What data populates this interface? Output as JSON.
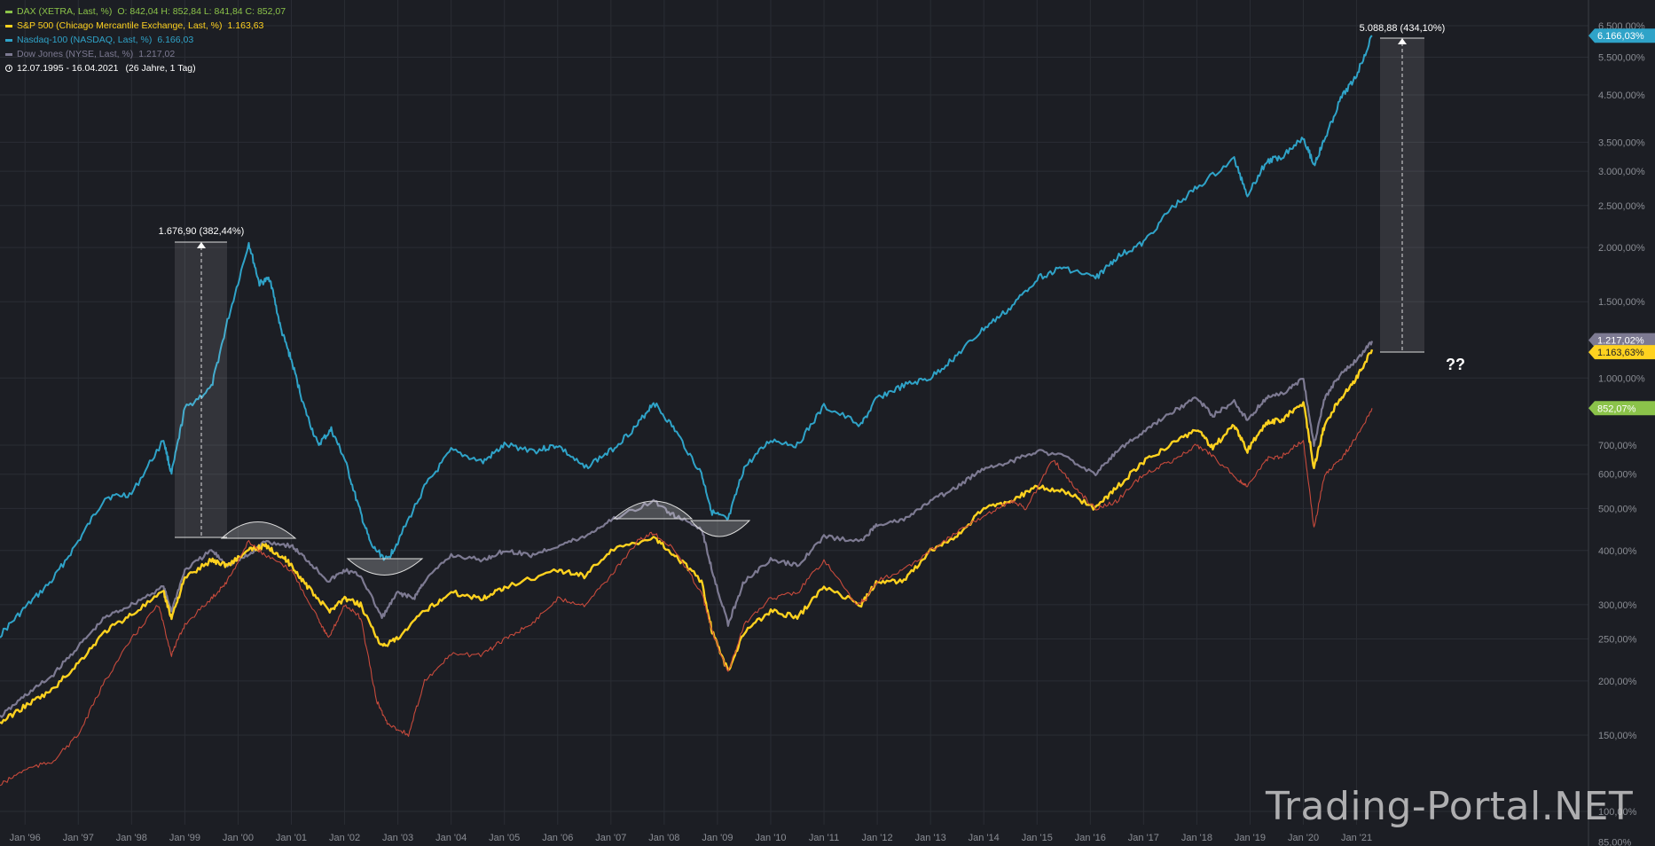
{
  "legend": {
    "series": [
      {
        "name": "DAX (XETRA, Last, %)",
        "ohlc": "O: 842,04   H: 852,84   L: 841,84   C: 852,07",
        "last": "",
        "color": "#8bc34a",
        "icon": "candlestick-icon"
      },
      {
        "name": "S&P 500 (Chicago Mercantile Exchange, Last, %)",
        "ohlc": "",
        "last": "1.163,63",
        "color": "#ffd21f",
        "icon": "line-swatch"
      },
      {
        "name": "Nasdaq-100 (NASDAQ, Last, %)",
        "ohlc": "",
        "last": "6.166,03",
        "color": "#2fa3c8",
        "icon": "line-swatch"
      },
      {
        "name": "Dow Jones (NYSE, Last, %)",
        "ohlc": "",
        "last": "1.217,02",
        "color": "#7d7a92",
        "icon": "line-swatch"
      }
    ],
    "range": "12.07.1995 - 16.04.2021",
    "duration": "(26 Jahre, 1 Tag)"
  },
  "watermark": "Trading-Portal.NET",
  "chart_data": {
    "type": "line",
    "y_scale": "log",
    "ylim": [
      85,
      6800
    ],
    "xlim": [
      1995.53,
      2021.29
    ],
    "x_ticks": [
      "Jan '96",
      "Jan '97",
      "Jan '98",
      "Jan '99",
      "Jan '00",
      "Jan '01",
      "Jan '02",
      "Jan '03",
      "Jan '04",
      "Jan '05",
      "Jan '06",
      "Jan '07",
      "Jan '08",
      "Jan '09",
      "Jan '10",
      "Jan '11",
      "Jan '12",
      "Jan '13",
      "Jan '14",
      "Jan '15",
      "Jan '16",
      "Jan '17",
      "Jan '18",
      "Jan '19",
      "Jan '20",
      "Jan '21"
    ],
    "y_ticks": [
      "85,00%",
      "100,00%",
      "150,00%",
      "200,00%",
      "250,00%",
      "300,00%",
      "400,00%",
      "500,00%",
      "600,00%",
      "700,00%",
      "1.000,00%",
      "1.500,00%",
      "2.000,00%",
      "2.500,00%",
      "3.000,00%",
      "3.500,00%",
      "4.500,00%",
      "5.500,00%",
      "6.500,00%"
    ],
    "series": [
      {
        "name": "Nasdaq-100",
        "color": "#2fa3c8",
        "x": [
          1995.53,
          1996.0,
          1996.5,
          1997.0,
          1997.5,
          1998.0,
          1998.6,
          1998.75,
          1999.0,
          1999.5,
          1999.8,
          2000.2,
          2000.4,
          2000.6,
          2000.8,
          2001.0,
          2001.25,
          2001.5,
          2001.75,
          2002.0,
          2002.25,
          2002.5,
          2002.8,
          2003.0,
          2003.5,
          2004.0,
          2004.6,
          2005.0,
          2005.6,
          2006.0,
          2006.5,
          2007.0,
          2007.5,
          2007.8,
          2008.2,
          2008.7,
          2008.9,
          2009.2,
          2009.5,
          2010.0,
          2010.5,
          2011.0,
          2011.7,
          2012.0,
          2012.5,
          2013.0,
          2013.5,
          2014.0,
          2014.5,
          2015.0,
          2015.5,
          2016.1,
          2016.5,
          2017.0,
          2017.5,
          2018.0,
          2018.7,
          2018.95,
          2019.3,
          2019.6,
          2020.0,
          2020.2,
          2020.4,
          2020.7,
          2021.0,
          2021.29
        ],
        "y": [
          255,
          295,
          340,
          420,
          530,
          540,
          720,
          600,
          850,
          950,
          1350,
          2050,
          1650,
          1700,
          1300,
          1100,
          850,
          700,
          760,
          650,
          510,
          410,
          380,
          420,
          560,
          680,
          640,
          700,
          680,
          700,
          620,
          680,
          780,
          880,
          760,
          600,
          490,
          470,
          620,
          720,
          700,
          860,
          780,
          900,
          960,
          1000,
          1130,
          1300,
          1450,
          1700,
          1800,
          1700,
          1900,
          2050,
          2450,
          2750,
          3200,
          2650,
          3150,
          3250,
          3600,
          3100,
          3550,
          4400,
          5000,
          6166
        ]
      },
      {
        "name": "Dow Jones",
        "color": "#7d7a92",
        "x": [
          1995.53,
          1996.0,
          1996.5,
          1997.0,
          1997.5,
          1998.0,
          1998.6,
          1998.75,
          1999.0,
          1999.5,
          1999.8,
          2000.2,
          2000.5,
          2001.0,
          2001.3,
          2001.7,
          2002.0,
          2002.3,
          2002.7,
          2003.0,
          2003.3,
          2003.5,
          2004.0,
          2004.6,
          2005.0,
          2005.5,
          2006.0,
          2006.5,
          2007.0,
          2007.8,
          2008.2,
          2008.7,
          2008.9,
          2009.2,
          2009.5,
          2010.0,
          2010.5,
          2011.0,
          2011.7,
          2012.0,
          2012.5,
          2013.0,
          2013.5,
          2014.0,
          2014.5,
          2015.0,
          2015.5,
          2016.1,
          2016.5,
          2017.0,
          2017.5,
          2018.0,
          2018.3,
          2018.7,
          2018.95,
          2019.3,
          2019.6,
          2020.0,
          2020.2,
          2020.4,
          2020.7,
          2021.0,
          2021.29
        ],
        "y": [
          165,
          185,
          205,
          240,
          280,
          300,
          330,
          290,
          360,
          400,
          370,
          390,
          420,
          410,
          380,
          340,
          360,
          350,
          280,
          320,
          310,
          340,
          390,
          380,
          400,
          390,
          410,
          430,
          470,
          520,
          480,
          450,
          360,
          270,
          340,
          380,
          370,
          430,
          420,
          460,
          470,
          520,
          560,
          620,
          640,
          680,
          660,
          600,
          680,
          750,
          830,
          900,
          820,
          880,
          800,
          900,
          920,
          1000,
          700,
          900,
          1020,
          1100,
          1217
        ]
      },
      {
        "name": "S&P 500",
        "color": "#ffd21f",
        "x": [
          1995.53,
          1996.0,
          1996.5,
          1997.0,
          1997.5,
          1998.0,
          1998.6,
          1998.75,
          1999.0,
          1999.5,
          1999.8,
          2000.2,
          2000.5,
          2000.8,
          2001.0,
          2001.3,
          2001.7,
          2002.0,
          2002.3,
          2002.7,
          2003.0,
          2003.5,
          2004.0,
          2004.6,
          2005.0,
          2006.0,
          2006.5,
          2007.0,
          2007.8,
          2008.2,
          2008.7,
          2008.9,
          2009.2,
          2009.5,
          2010.0,
          2010.5,
          2011.0,
          2011.7,
          2012.0,
          2012.5,
          2013.0,
          2013.5,
          2014.0,
          2014.5,
          2015.0,
          2015.5,
          2016.1,
          2016.5,
          2017.0,
          2017.5,
          2018.0,
          2018.3,
          2018.7,
          2018.95,
          2019.3,
          2019.6,
          2020.0,
          2020.2,
          2020.4,
          2020.7,
          2021.0,
          2021.29
        ],
        "y": [
          160,
          175,
          190,
          220,
          260,
          285,
          320,
          280,
          345,
          380,
          370,
          400,
          410,
          390,
          370,
          330,
          290,
          310,
          300,
          240,
          250,
          290,
          320,
          310,
          330,
          360,
          350,
          400,
          430,
          390,
          340,
          260,
          210,
          260,
          290,
          280,
          330,
          300,
          340,
          340,
          400,
          430,
          500,
          520,
          560,
          550,
          500,
          560,
          640,
          700,
          760,
          690,
          780,
          680,
          790,
          800,
          880,
          620,
          780,
          900,
          1000,
          1163
        ]
      },
      {
        "name": "DAX",
        "color": "#c74a3c",
        "x": [
          1995.53,
          1996.0,
          1996.5,
          1997.0,
          1997.5,
          1998.0,
          1998.5,
          1998.75,
          1999.0,
          1999.5,
          1999.8,
          2000.2,
          2000.5,
          2001.0,
          2001.5,
          2001.7,
          2002.0,
          2002.3,
          2002.6,
          2002.8,
          2003.2,
          2003.5,
          2004.0,
          2004.6,
          2005.0,
          2005.5,
          2006.0,
          2006.5,
          2007.0,
          2007.5,
          2007.8,
          2008.2,
          2008.7,
          2008.9,
          2009.2,
          2009.5,
          2010.0,
          2010.5,
          2011.0,
          2011.6,
          2011.8,
          2012.0,
          2012.5,
          2013.0,
          2013.5,
          2014.0,
          2014.5,
          2014.8,
          2015.3,
          2015.7,
          2016.1,
          2016.5,
          2017.0,
          2017.5,
          2018.0,
          2018.3,
          2018.8,
          2018.95,
          2019.3,
          2019.6,
          2020.0,
          2020.2,
          2020.4,
          2020.7,
          2021.0,
          2021.29
        ],
        "y": [
          115,
          125,
          130,
          150,
          200,
          250,
          300,
          230,
          270,
          310,
          340,
          420,
          390,
          360,
          280,
          250,
          300,
          280,
          180,
          160,
          150,
          200,
          230,
          230,
          250,
          270,
          310,
          300,
          350,
          420,
          440,
          400,
          320,
          260,
          210,
          270,
          310,
          320,
          380,
          300,
          310,
          340,
          360,
          400,
          440,
          480,
          520,
          500,
          650,
          560,
          500,
          520,
          600,
          640,
          700,
          660,
          580,
          560,
          650,
          660,
          720,
          450,
          600,
          650,
          730,
          852
        ]
      }
    ],
    "annotations": [
      {
        "label": "1.676,90 (382,44%)",
        "type": "measurement"
      },
      {
        "label": "5.088,88 (434,10%)",
        "type": "measurement"
      },
      {
        "label": "??",
        "type": "text"
      }
    ],
    "last_value_tags": [
      {
        "label": "6.166,03%",
        "value": 6166.03,
        "color": "#2fa3c8"
      },
      {
        "label": "1.217,02%",
        "value": 1217.02,
        "color": "#7d7a92"
      },
      {
        "label": "1.163,63%",
        "value": 1163.63,
        "color": "#ffd21f"
      },
      {
        "label": "852,07%",
        "value": 852.07,
        "color": "#8bc34a"
      }
    ]
  }
}
